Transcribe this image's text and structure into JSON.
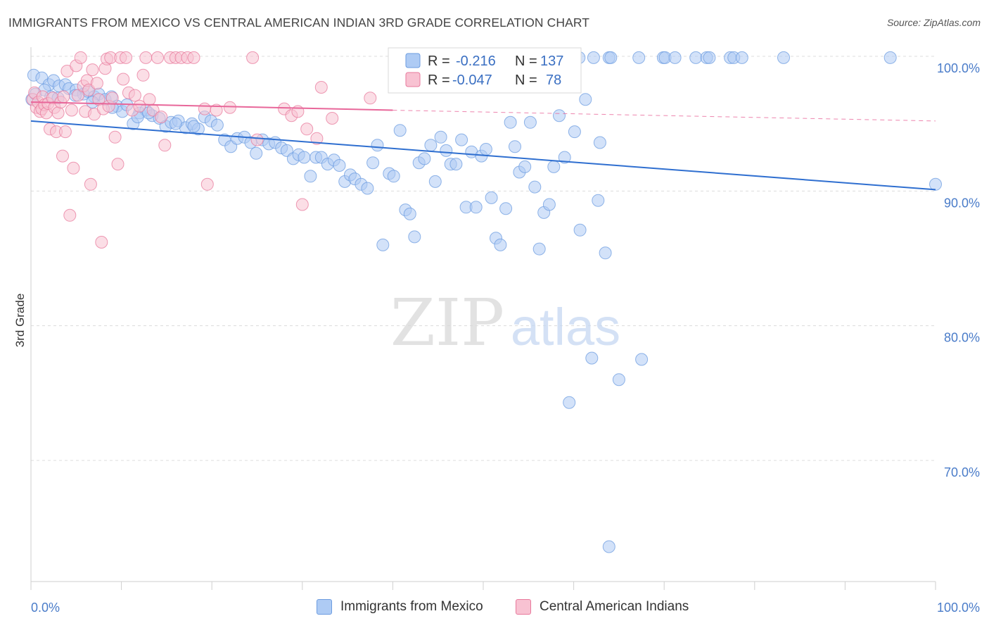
{
  "title": "IMMIGRANTS FROM MEXICO VS CENTRAL AMERICAN INDIAN 3RD GRADE CORRELATION CHART",
  "source": "Source: ZipAtlas.com",
  "watermark": {
    "zip": "ZIP",
    "atlas": "atlas"
  },
  "legend_stats": [
    {
      "r_label": "R =",
      "r_value": "-0.216",
      "n_label": "N =",
      "n_value": "137",
      "color": "#6c9ce0"
    },
    {
      "r_label": "R =",
      "r_value": "-0.047",
      "n_label": "N =",
      "n_value": "78",
      "color": "#f08aaa"
    }
  ],
  "bottom_legend": [
    {
      "label": "Immigrants from Mexico",
      "color": "#aecbf4"
    },
    {
      "label": "Central American Indians",
      "color": "#f8c2d2"
    }
  ],
  "chart_data": {
    "type": "scatter",
    "title": "IMMIGRANTS FROM MEXICO VS CENTRAL AMERICAN INDIAN 3RD GRADE CORRELATION CHART",
    "xlabel": "",
    "ylabel": "3rd Grade",
    "xlim": [
      0,
      100
    ],
    "ylim": [
      61.5,
      101.5
    ],
    "x_tick_labels": [
      "0.0%",
      "100.0%"
    ],
    "y_ticks": [
      100,
      90,
      80,
      70
    ],
    "y_tick_labels": [
      "100.0%",
      "90.0%",
      "80.0%",
      "70.0%"
    ],
    "grid": "horizontal dashed",
    "series": [
      {
        "name": "Immigrants from Mexico",
        "color": "#6c9ce0",
        "fill": "#aecbf4",
        "trend": {
          "x": [
            0,
            100
          ],
          "y": [
            95.2,
            90.1
          ],
          "style": "solid"
        },
        "points": [
          [
            0.3,
            98.6
          ],
          [
            1.2,
            98.4
          ],
          [
            2.0,
            97.9
          ],
          [
            2.5,
            98.2
          ],
          [
            3.1,
            97.8
          ],
          [
            3.8,
            97.9
          ],
          [
            4.2,
            97.6
          ],
          [
            5.0,
            97.5
          ],
          [
            5.8,
            97.2
          ],
          [
            6.3,
            97.4
          ],
          [
            7.0,
            97.0
          ],
          [
            7.5,
            97.2
          ],
          [
            8.2,
            96.8
          ],
          [
            8.9,
            97.0
          ],
          [
            9.5,
            96.3
          ],
          [
            10.1,
            95.9
          ],
          [
            10.6,
            96.4
          ],
          [
            11.3,
            95.0
          ],
          [
            12.0,
            95.8
          ],
          [
            12.7,
            96.0
          ],
          [
            13.4,
            95.6
          ],
          [
            14.2,
            95.4
          ],
          [
            14.9,
            94.8
          ],
          [
            15.5,
            95.1
          ],
          [
            16.3,
            95.2
          ],
          [
            17.1,
            94.7
          ],
          [
            17.8,
            95.0
          ],
          [
            18.5,
            94.6
          ],
          [
            19.2,
            95.5
          ],
          [
            19.9,
            95.2
          ],
          [
            20.6,
            94.9
          ],
          [
            21.4,
            93.8
          ],
          [
            22.1,
            93.3
          ],
          [
            22.8,
            93.9
          ],
          [
            23.6,
            94.0
          ],
          [
            24.3,
            93.6
          ],
          [
            24.9,
            92.8
          ],
          [
            25.6,
            93.8
          ],
          [
            26.3,
            93.5
          ],
          [
            27.0,
            93.6
          ],
          [
            27.7,
            93.2
          ],
          [
            28.3,
            93.0
          ],
          [
            29.0,
            92.4
          ],
          [
            29.6,
            92.7
          ],
          [
            30.2,
            92.5
          ],
          [
            30.9,
            91.1
          ],
          [
            31.5,
            92.5
          ],
          [
            32.1,
            92.5
          ],
          [
            32.8,
            92.0
          ],
          [
            33.5,
            92.3
          ],
          [
            34.1,
            91.9
          ],
          [
            34.7,
            90.7
          ],
          [
            35.3,
            91.2
          ],
          [
            35.8,
            90.9
          ],
          [
            36.5,
            90.5
          ],
          [
            37.2,
            90.2
          ],
          [
            37.8,
            92.1
          ],
          [
            38.3,
            93.4
          ],
          [
            38.9,
            86.0
          ],
          [
            39.6,
            91.3
          ],
          [
            40.1,
            91.1
          ],
          [
            40.8,
            94.5
          ],
          [
            41.4,
            88.6
          ],
          [
            41.9,
            88.3
          ],
          [
            42.4,
            86.6
          ],
          [
            42.9,
            92.1
          ],
          [
            43.5,
            92.4
          ],
          [
            44.2,
            93.4
          ],
          [
            44.7,
            90.7
          ],
          [
            45.3,
            94.0
          ],
          [
            45.9,
            93.0
          ],
          [
            46.4,
            92.0
          ],
          [
            47.0,
            92.0
          ],
          [
            47.6,
            93.8
          ],
          [
            48.1,
            88.8
          ],
          [
            48.7,
            92.9
          ],
          [
            49.2,
            88.8
          ],
          [
            49.8,
            92.6
          ],
          [
            50.3,
            93.1
          ],
          [
            50.9,
            89.5
          ],
          [
            51.4,
            86.5
          ],
          [
            51.9,
            86.0
          ],
          [
            52.5,
            88.7
          ],
          [
            53.0,
            95.1
          ],
          [
            53.5,
            93.3
          ],
          [
            54.0,
            91.4
          ],
          [
            54.6,
            91.8
          ],
          [
            55.2,
            95.1
          ],
          [
            55.7,
            90.3
          ],
          [
            56.2,
            85.7
          ],
          [
            56.7,
            88.4
          ],
          [
            57.3,
            89.0
          ],
          [
            57.8,
            91.8
          ],
          [
            58.4,
            95.6
          ],
          [
            59.0,
            92.5
          ],
          [
            59.5,
            74.3
          ],
          [
            60.1,
            94.4
          ],
          [
            60.7,
            87.1
          ],
          [
            61.3,
            96.8
          ],
          [
            62.0,
            77.6
          ],
          [
            62.7,
            89.3
          ],
          [
            62.9,
            93.6
          ],
          [
            63.5,
            85.4
          ],
          [
            63.9,
            63.6
          ],
          [
            65.0,
            76.0
          ],
          [
            67.5,
            77.5
          ],
          [
            0.1,
            96.8
          ],
          [
            0.5,
            97.2
          ],
          [
            1.5,
            97.5
          ],
          [
            2.2,
            97.0
          ],
          [
            3.0,
            96.9
          ],
          [
            4.9,
            97.1
          ],
          [
            6.8,
            96.6
          ],
          [
            9.0,
            96.2
          ],
          [
            11.8,
            95.5
          ],
          [
            13.0,
            95.8
          ],
          [
            16.0,
            95.0
          ],
          [
            18.0,
            94.8
          ],
          [
            50.8,
            99.9
          ],
          [
            55.4,
            99.9
          ],
          [
            60.6,
            99.9
          ],
          [
            62.2,
            99.9
          ],
          [
            63.9,
            99.9
          ],
          [
            67.2,
            99.9
          ],
          [
            69.9,
            99.9
          ],
          [
            70.1,
            99.9
          ],
          [
            71.2,
            99.9
          ],
          [
            73.5,
            99.9
          ],
          [
            74.7,
            99.9
          ],
          [
            75.0,
            99.9
          ],
          [
            77.3,
            99.9
          ],
          [
            77.7,
            99.9
          ],
          [
            78.6,
            99.9
          ],
          [
            83.2,
            99.9
          ],
          [
            95.0,
            99.9
          ],
          [
            100.0,
            90.5
          ],
          [
            64.1,
            99.9
          ]
        ]
      },
      {
        "name": "Central American Indians",
        "color": "#e8799c",
        "fill": "#f8c2d2",
        "trend": {
          "x": [
            0,
            40
          ],
          "y": [
            96.6,
            96.0
          ],
          "style": "solid",
          "extended": {
            "x": [
              40,
              100
            ],
            "y": [
              96.0,
              95.2
            ],
            "style": "dashed"
          }
        },
        "points": [
          [
            0.2,
            96.8
          ],
          [
            0.4,
            97.3
          ],
          [
            0.6,
            96.2
          ],
          [
            0.8,
            96.6
          ],
          [
            1.0,
            95.9
          ],
          [
            1.2,
            96.1
          ],
          [
            1.3,
            97.0
          ],
          [
            1.5,
            96.4
          ],
          [
            1.7,
            95.8
          ],
          [
            1.9,
            96.5
          ],
          [
            2.1,
            94.6
          ],
          [
            2.4,
            96.9
          ],
          [
            2.6,
            96.2
          ],
          [
            2.8,
            94.4
          ],
          [
            3.0,
            95.8
          ],
          [
            3.3,
            96.6
          ],
          [
            3.5,
            92.6
          ],
          [
            3.8,
            94.4
          ],
          [
            4.0,
            98.9
          ],
          [
            4.3,
            88.2
          ],
          [
            4.5,
            96.0
          ],
          [
            4.7,
            91.7
          ],
          [
            5.0,
            99.3
          ],
          [
            5.2,
            97.1
          ],
          [
            5.5,
            99.9
          ],
          [
            5.8,
            97.8
          ],
          [
            6.0,
            95.9
          ],
          [
            6.2,
            98.2
          ],
          [
            6.4,
            97.5
          ],
          [
            6.6,
            90.5
          ],
          [
            6.8,
            99.0
          ],
          [
            7.0,
            95.7
          ],
          [
            7.3,
            98.0
          ],
          [
            7.5,
            96.8
          ],
          [
            7.8,
            86.2
          ],
          [
            8.0,
            96.1
          ],
          [
            8.2,
            99.1
          ],
          [
            8.4,
            99.8
          ],
          [
            8.6,
            96.3
          ],
          [
            8.8,
            99.9
          ],
          [
            9.0,
            96.9
          ],
          [
            9.3,
            94.0
          ],
          [
            9.6,
            92.0
          ],
          [
            9.9,
            99.9
          ],
          [
            10.2,
            98.3
          ],
          [
            10.5,
            99.9
          ],
          [
            10.8,
            97.3
          ],
          [
            11.2,
            96.0
          ],
          [
            11.5,
            97.1
          ],
          [
            12.0,
            96.3
          ],
          [
            12.4,
            98.6
          ],
          [
            12.7,
            99.9
          ],
          [
            13.1,
            96.8
          ],
          [
            13.5,
            96.0
          ],
          [
            14.0,
            99.9
          ],
          [
            14.4,
            95.5
          ],
          [
            14.8,
            93.4
          ],
          [
            15.4,
            99.9
          ],
          [
            16.0,
            99.9
          ],
          [
            16.6,
            99.9
          ],
          [
            17.3,
            99.9
          ],
          [
            18.0,
            99.9
          ],
          [
            19.2,
            96.1
          ],
          [
            19.5,
            90.5
          ],
          [
            20.5,
            96.0
          ],
          [
            22.0,
            96.2
          ],
          [
            24.5,
            99.9
          ],
          [
            25.0,
            93.8
          ],
          [
            28.0,
            96.1
          ],
          [
            28.8,
            95.6
          ],
          [
            29.5,
            95.9
          ],
          [
            30.0,
            89.0
          ],
          [
            30.5,
            94.6
          ],
          [
            31.6,
            93.9
          ],
          [
            32.1,
            97.7
          ],
          [
            33.3,
            95.4
          ],
          [
            37.5,
            96.9
          ],
          [
            3.6,
            97.0
          ]
        ]
      }
    ]
  }
}
